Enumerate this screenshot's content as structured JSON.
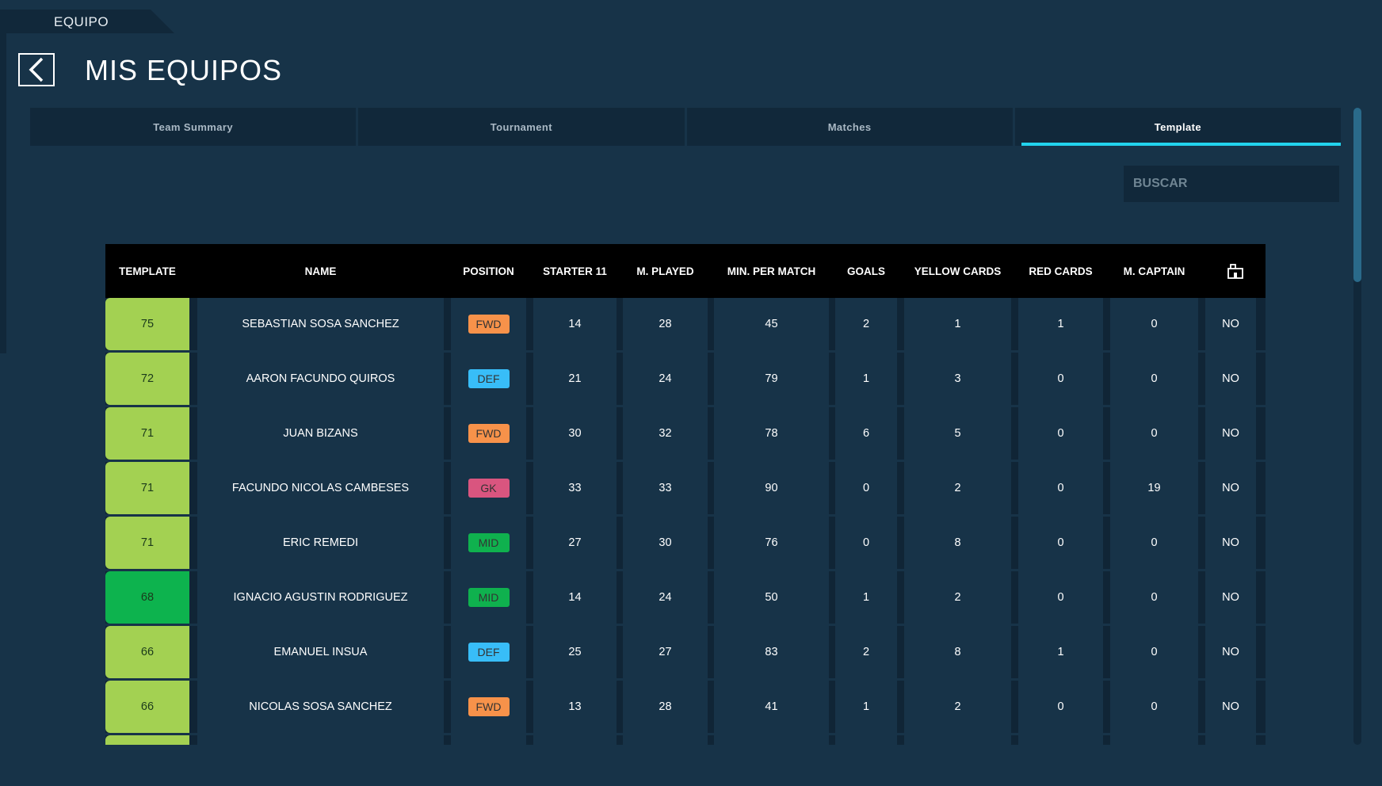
{
  "section_label": "EQUIPO",
  "page_title": "MIS EQUIPOS",
  "tabs": [
    {
      "label": "Team Summary",
      "active": false
    },
    {
      "label": "Tournament",
      "active": false
    },
    {
      "label": "Matches",
      "active": false
    },
    {
      "label": "Template",
      "active": true
    }
  ],
  "search": {
    "placeholder": "BUSCAR",
    "value": ""
  },
  "colors": {
    "accent": "#22d3ee",
    "template_high": "#a3d152",
    "template_top": "#0db34e",
    "fwd": "#f7924a",
    "def": "#38bdf8",
    "gk": "#d9557f",
    "mid": "#0fb14e"
  },
  "table": {
    "headers": [
      "TEMPLATE",
      "NAME",
      "POSITION",
      "STARTER 11",
      "M. PLAYED",
      "MIN. PER MATCH",
      "GOALS",
      "YELLOW CARDS",
      "RED CARDS",
      "M. CAPTAIN"
    ],
    "last_header_icon": "stadium-icon",
    "rows": [
      {
        "template": "75",
        "name": "SEBASTIAN SOSA SANCHEZ",
        "position": "FWD",
        "starter11": "14",
        "mplayed": "28",
        "minpermatch": "45",
        "goals": "2",
        "yellow": "1",
        "red": "1",
        "mcaptain": "0",
        "last": "NO"
      },
      {
        "template": "72",
        "name": "AARON FACUNDO QUIROS",
        "position": "DEF",
        "starter11": "21",
        "mplayed": "24",
        "minpermatch": "79",
        "goals": "1",
        "yellow": "3",
        "red": "0",
        "mcaptain": "0",
        "last": "NO"
      },
      {
        "template": "71",
        "name": "JUAN BIZANS",
        "position": "FWD",
        "starter11": "30",
        "mplayed": "32",
        "minpermatch": "78",
        "goals": "6",
        "yellow": "5",
        "red": "0",
        "mcaptain": "0",
        "last": "NO"
      },
      {
        "template": "71",
        "name": "FACUNDO NICOLAS CAMBESES",
        "position": "GK",
        "starter11": "33",
        "mplayed": "33",
        "minpermatch": "90",
        "goals": "0",
        "yellow": "2",
        "red": "0",
        "mcaptain": "19",
        "last": "NO"
      },
      {
        "template": "71",
        "name": "ERIC REMEDI",
        "position": "MID",
        "starter11": "27",
        "mplayed": "30",
        "minpermatch": "76",
        "goals": "0",
        "yellow": "8",
        "red": "0",
        "mcaptain": "0",
        "last": "NO"
      },
      {
        "template": "68",
        "name": "IGNACIO AGUSTIN RODRIGUEZ",
        "position": "MID",
        "starter11": "14",
        "mplayed": "24",
        "minpermatch": "50",
        "goals": "1",
        "yellow": "2",
        "red": "0",
        "mcaptain": "0",
        "last": "NO"
      },
      {
        "template": "66",
        "name": "EMANUEL INSUA",
        "position": "DEF",
        "starter11": "25",
        "mplayed": "27",
        "minpermatch": "83",
        "goals": "2",
        "yellow": "8",
        "red": "1",
        "mcaptain": "0",
        "last": "NO"
      },
      {
        "template": "66",
        "name": "NICOLAS SOSA SANCHEZ",
        "position": "FWD",
        "starter11": "13",
        "mplayed": "28",
        "minpermatch": "41",
        "goals": "1",
        "yellow": "2",
        "red": "0",
        "mcaptain": "0",
        "last": "NO"
      },
      {
        "template": "",
        "name": "",
        "position": "",
        "starter11": "",
        "mplayed": "",
        "minpermatch": "",
        "goals": "",
        "yellow": "",
        "red": "",
        "mcaptain": "",
        "last": ""
      }
    ]
  }
}
